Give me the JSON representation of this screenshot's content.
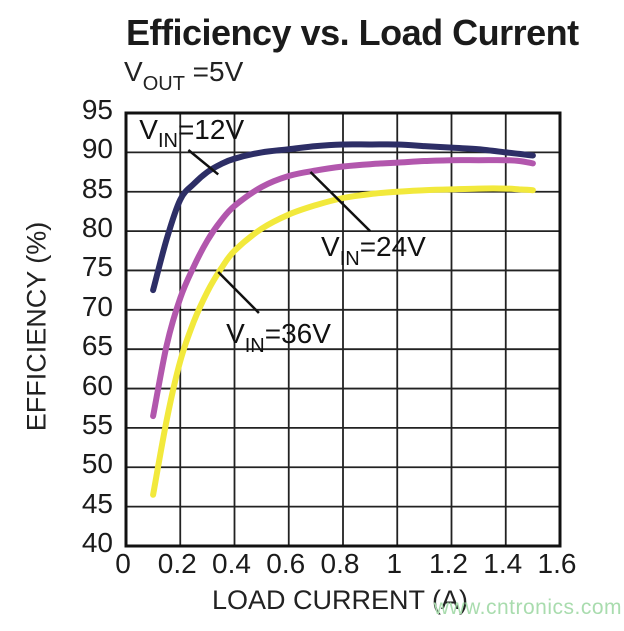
{
  "header": {
    "title": "Efficiency vs. Load Current",
    "subtitle": {
      "pre": "V",
      "sub": "OUT",
      "post": " =5V"
    }
  },
  "watermark": "www.cntronics.com",
  "colors": {
    "grid": "#222222",
    "border": "#111111",
    "leader": "#111111",
    "series_12v": "#2d2e66",
    "series_24v": "#b257ad",
    "series_36v": "#f2e93c",
    "watermark": "#a9dcae"
  },
  "chart_data": {
    "type": "line",
    "title": "Efficiency vs. Load Current",
    "subtitle": "VOUT =5V",
    "xlabel": "LOAD CURRENT (A)",
    "ylabel": "EFFICIENCY (%)",
    "xlim": [
      0,
      1.6
    ],
    "ylim": [
      40,
      95
    ],
    "grid": true,
    "x_ticks": [
      0,
      0.2,
      0.4,
      0.6,
      0.8,
      1,
      1.2,
      1.4,
      1.6
    ],
    "x_tick_labels": [
      "0",
      "0.2",
      "0.4",
      "0.6",
      "0.8",
      "1",
      "1.2",
      "1.4",
      "1.6"
    ],
    "y_ticks": [
      40,
      45,
      50,
      55,
      60,
      65,
      70,
      75,
      80,
      85,
      90,
      95
    ],
    "y_tick_labels": [
      "40",
      "45",
      "50",
      "55",
      "60",
      "65",
      "70",
      "75",
      "80",
      "85",
      "90",
      "95"
    ],
    "x": [
      0.1,
      0.15,
      0.2,
      0.25,
      0.3,
      0.35,
      0.4,
      0.5,
      0.6,
      0.7,
      0.8,
      0.9,
      1.0,
      1.1,
      1.2,
      1.3,
      1.4,
      1.45,
      1.5
    ],
    "series": [
      {
        "name": "VIN=12V",
        "label": {
          "pre": "V",
          "sub": "IN",
          "post": "=12V"
        },
        "color_key": "series_12v",
        "values": [
          72.5,
          79.0,
          84.0,
          86.0,
          87.5,
          88.5,
          89.2,
          90.0,
          90.4,
          90.8,
          91.0,
          91.0,
          91.0,
          90.8,
          90.6,
          90.4,
          90.0,
          89.8,
          89.6
        ],
        "annotation": {
          "label_pos": [
            0.06,
            94.4
          ],
          "leader": [
            [
              0.23,
              90.3
            ],
            [
              0.34,
              87.2
            ]
          ]
        }
      },
      {
        "name": "VIN=24V",
        "label": {
          "pre": "V",
          "sub": "IN",
          "post": "=24V"
        },
        "color_key": "series_24v",
        "values": [
          56.5,
          65.5,
          71.5,
          75.5,
          78.8,
          81.3,
          83.2,
          85.6,
          87.0,
          87.7,
          88.2,
          88.5,
          88.7,
          88.9,
          89.0,
          89.0,
          89.0,
          88.9,
          88.6
        ],
        "annotation": {
          "label_pos": [
            0.73,
            79.5
          ],
          "leader": [
            [
              0.68,
              87.5
            ],
            [
              0.9,
              80.0
            ]
          ]
        }
      },
      {
        "name": "VIN=36V",
        "label": {
          "pre": "V",
          "sub": "IN",
          "post": "=36V"
        },
        "color_key": "series_36v",
        "values": [
          46.5,
          56.0,
          63.5,
          68.5,
          72.3,
          75.2,
          77.5,
          80.3,
          82.1,
          83.3,
          84.2,
          84.7,
          85.0,
          85.2,
          85.3,
          85.4,
          85.4,
          85.3,
          85.2
        ],
        "annotation": {
          "label_pos": [
            0.38,
            68.4
          ],
          "leader": [
            [
              0.34,
              74.8
            ],
            [
              0.49,
              69.6
            ]
          ]
        }
      }
    ]
  }
}
